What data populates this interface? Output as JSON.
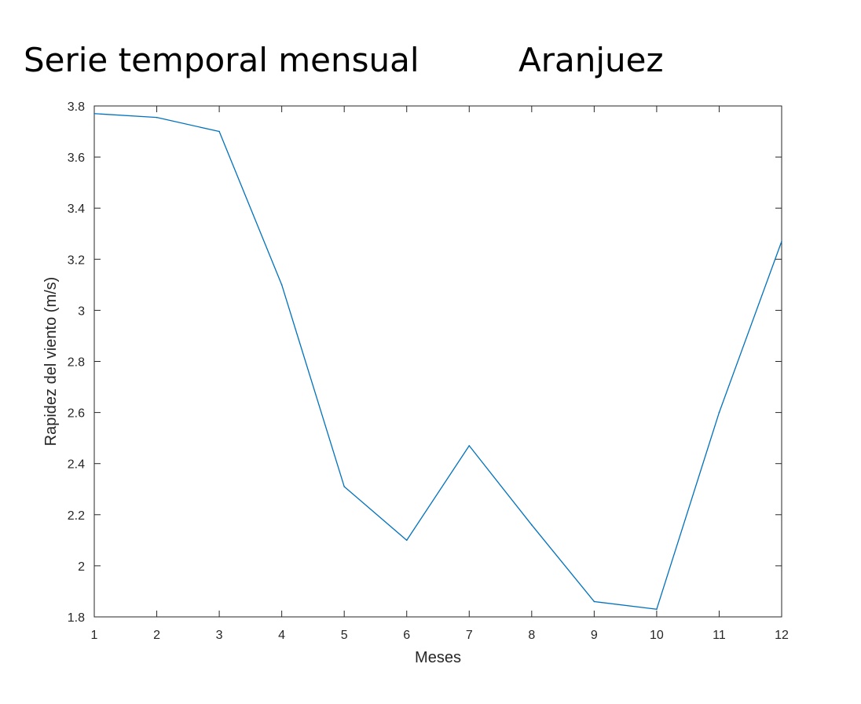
{
  "header": {
    "title_left": "Serie temporal mensual",
    "title_right": "Aranjuez"
  },
  "chart_data": {
    "type": "line",
    "title": "Serie temporal mensual Aranjuez",
    "xlabel": "Meses",
    "ylabel": "Rapidez del viento (m/s)",
    "xlim": [
      1,
      12
    ],
    "ylim": [
      1.8,
      3.8
    ],
    "x_ticks": [
      "1",
      "2",
      "3",
      "4",
      "5",
      "6",
      "7",
      "8",
      "9",
      "10",
      "11",
      "12"
    ],
    "y_ticks": [
      "1.8",
      "2",
      "2.2",
      "2.4",
      "2.6",
      "2.8",
      "3",
      "3.2",
      "3.4",
      "3.6",
      "3.8"
    ],
    "grid": false,
    "series": [
      {
        "color": "#0072BD",
        "x": [
          1,
          2,
          3,
          4,
          5,
          6,
          7,
          8,
          9,
          10,
          11,
          12
        ],
        "y": [
          3.77,
          3.755,
          3.7,
          3.1,
          2.31,
          2.1,
          2.47,
          2.16,
          1.86,
          1.83,
          2.6,
          3.27
        ]
      }
    ]
  }
}
